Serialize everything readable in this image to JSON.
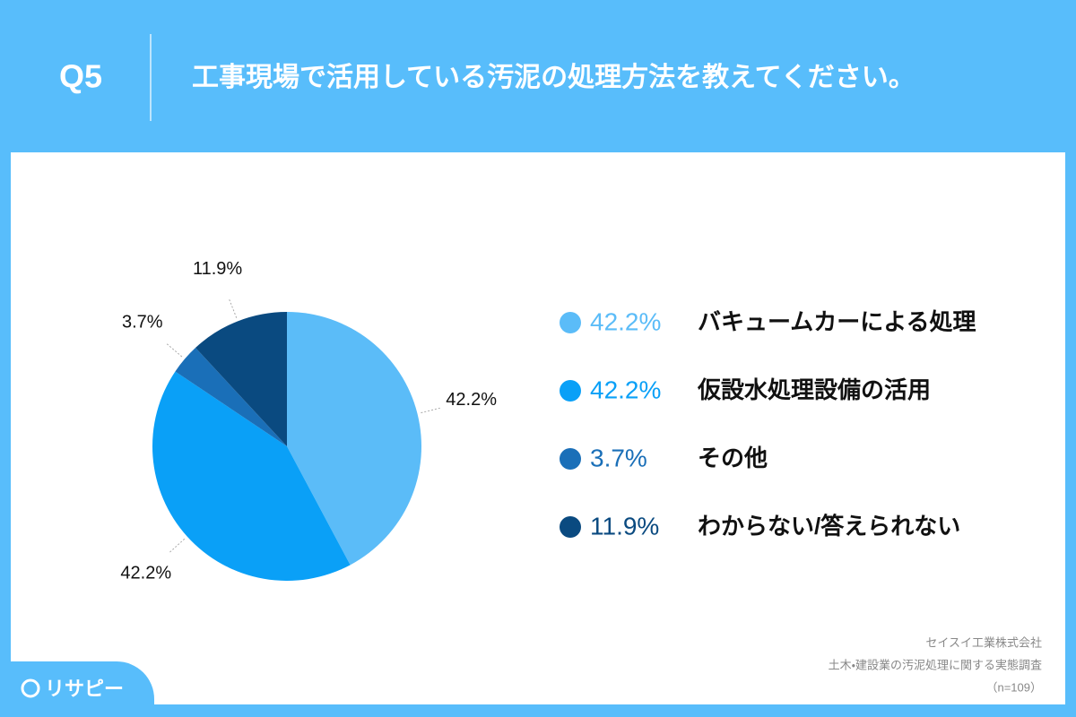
{
  "header": {
    "label": "Q5",
    "question": "工事現場で活用している汚泥の処理方法を教えてください。"
  },
  "chart_data": {
    "type": "pie",
    "categories": [
      "バキュームカーによる処理",
      "仮設水処理設備の活用",
      "その他",
      "わからない/答えられない"
    ],
    "values": [
      42.2,
      42.2,
      3.7,
      11.9
    ],
    "value_labels": [
      "42.2%",
      "42.2%",
      "3.7%",
      "11.9%"
    ],
    "colors": [
      "#5bbcf8",
      "#0aa0f7",
      "#1a6fb8",
      "#0a4a80"
    ],
    "legend": "right"
  },
  "source": [
    "セイスイ工業株式会社",
    "土木・建設業の汚泥処理に関する実態調査",
    "（n=109）"
  ],
  "logo": "リサピー"
}
